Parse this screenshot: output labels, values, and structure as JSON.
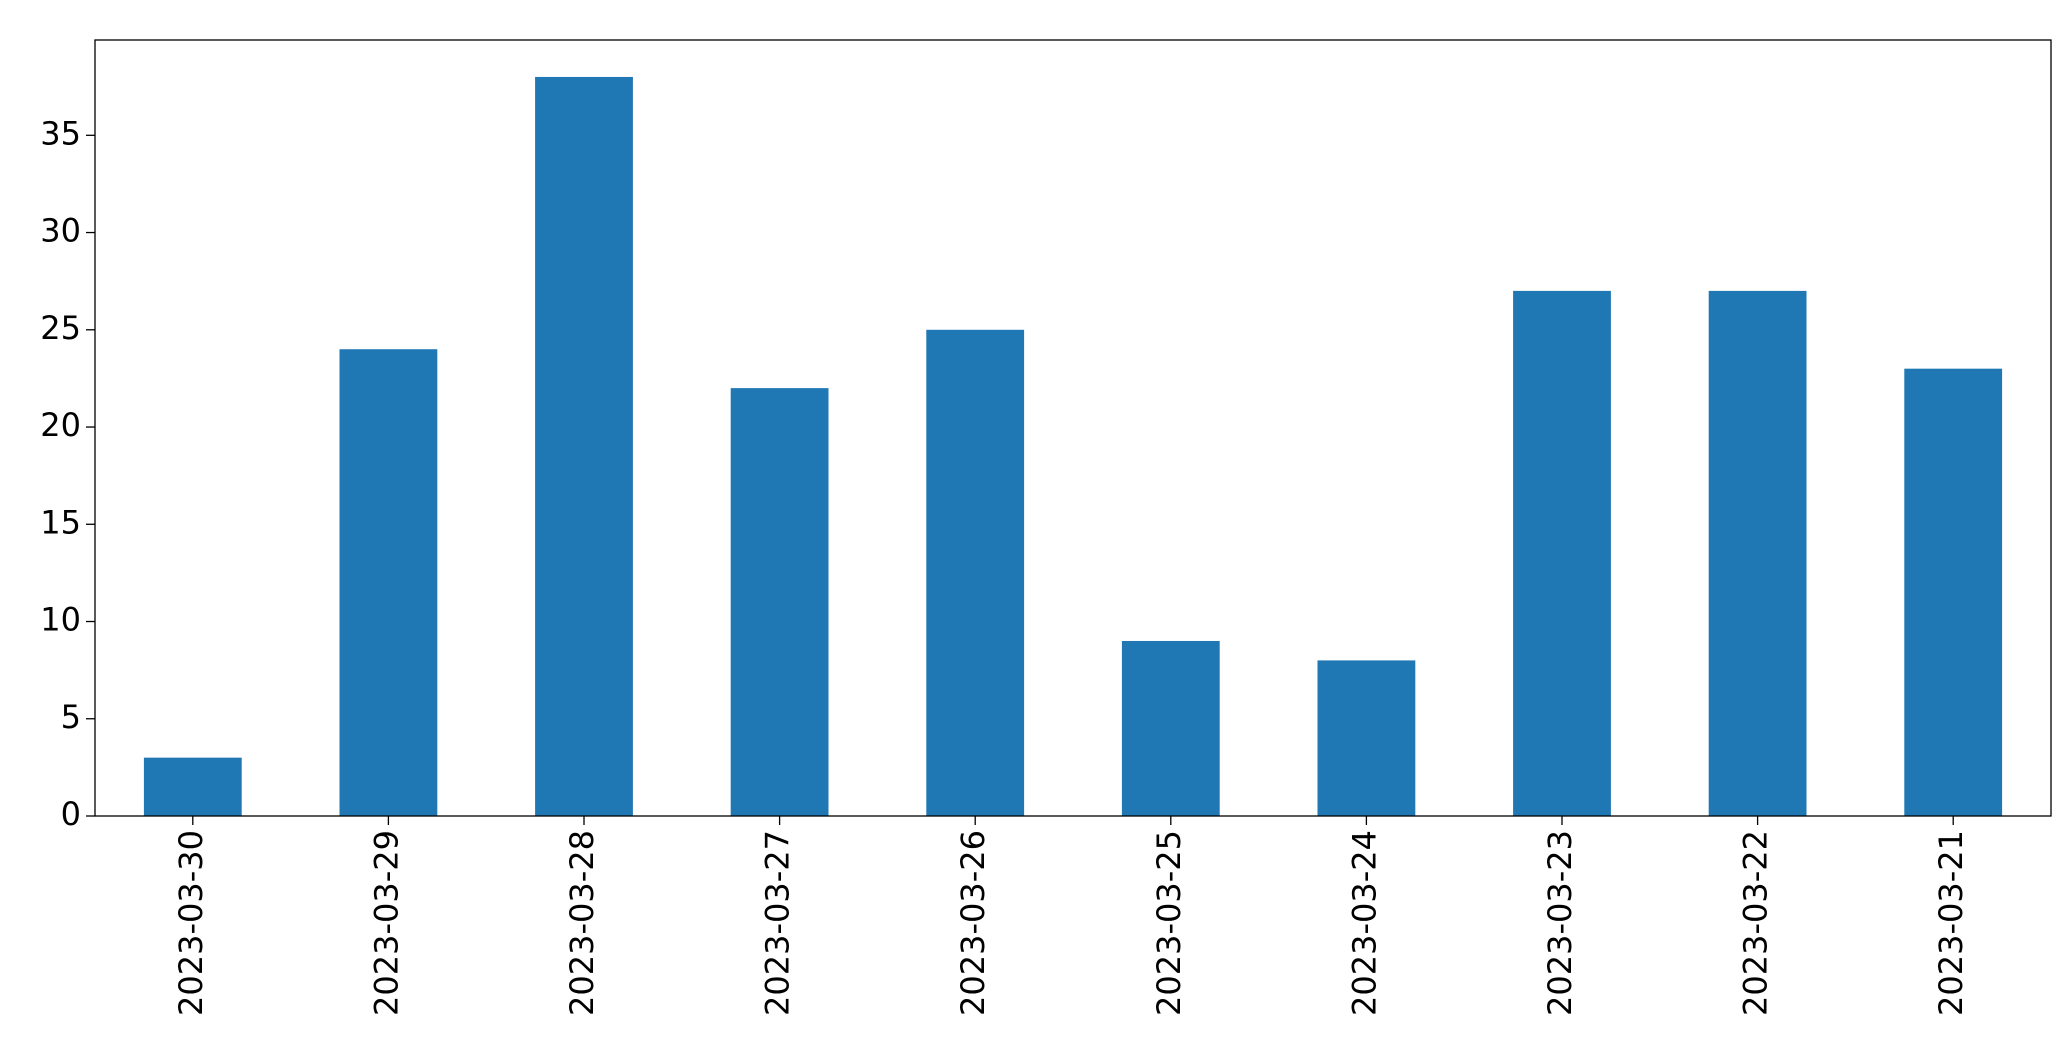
{
  "chart_data": {
    "type": "bar",
    "categories": [
      "2023-03-30",
      "2023-03-29",
      "2023-03-28",
      "2023-03-27",
      "2023-03-26",
      "2023-03-25",
      "2023-03-24",
      "2023-03-23",
      "2023-03-22",
      "2023-03-21"
    ],
    "values": [
      3,
      24,
      38,
      22,
      25,
      9,
      8,
      27,
      27,
      23
    ],
    "color": "#1f77b4",
    "ylim": [
      0,
      39.9
    ],
    "yticks": [
      0,
      5,
      10,
      15,
      20,
      25,
      30,
      35
    ],
    "grid": false
  }
}
